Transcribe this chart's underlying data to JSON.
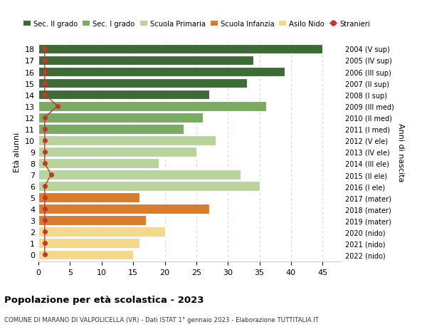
{
  "ages": [
    18,
    17,
    16,
    15,
    14,
    13,
    12,
    11,
    10,
    9,
    8,
    7,
    6,
    5,
    4,
    3,
    2,
    1,
    0
  ],
  "right_labels": [
    "2004 (V sup)",
    "2005 (IV sup)",
    "2006 (III sup)",
    "2007 (II sup)",
    "2008 (I sup)",
    "2009 (III med)",
    "2010 (II med)",
    "2011 (I med)",
    "2012 (V ele)",
    "2013 (IV ele)",
    "2014 (III ele)",
    "2015 (II ele)",
    "2016 (I ele)",
    "2017 (mater)",
    "2018 (mater)",
    "2019 (mater)",
    "2020 (nido)",
    "2021 (nido)",
    "2022 (nido)"
  ],
  "bar_values": [
    45,
    34,
    39,
    33,
    27,
    36,
    26,
    23,
    28,
    25,
    19,
    32,
    35,
    16,
    27,
    17,
    20,
    16,
    15
  ],
  "bar_colors": [
    "#3d6b35",
    "#3d6b35",
    "#3d6b35",
    "#3d6b35",
    "#3d6b35",
    "#7aab60",
    "#7aab60",
    "#7aab60",
    "#b8d49a",
    "#b8d49a",
    "#b8d49a",
    "#b8d49a",
    "#b8d49a",
    "#d97c2b",
    "#d97c2b",
    "#d97c2b",
    "#f5d98b",
    "#f5d98b",
    "#f5d98b"
  ],
  "stranieri_values": [
    1,
    1,
    1,
    1,
    1,
    3,
    1,
    1,
    1,
    1,
    1,
    2,
    1,
    1,
    1,
    1,
    1,
    1,
    1
  ],
  "stranieri_color": "#c0392b",
  "legend_items": [
    {
      "label": "Sec. II grado",
      "color": "#3d6b35"
    },
    {
      "label": "Sec. I grado",
      "color": "#7aab60"
    },
    {
      "label": "Scuola Primaria",
      "color": "#b8d49a"
    },
    {
      "label": "Scuola Infanzia",
      "color": "#d97c2b"
    },
    {
      "label": "Asilo Nido",
      "color": "#f5d98b"
    },
    {
      "label": "Stranieri",
      "color": "#c0392b"
    }
  ],
  "ylabel_left": "Età alunni",
  "ylabel_right": "Anni di nascita",
  "xlim": [
    0,
    48
  ],
  "xticks": [
    0,
    5,
    10,
    15,
    20,
    25,
    30,
    35,
    40,
    45
  ],
  "title": "Popolazione per età scolastica - 2023",
  "subtitle": "COMUNE DI MARANO DI VALPOLICELLA (VR) - Dati ISTAT 1° gennaio 2023 - Elaborazione TUTTITALIA.IT",
  "background_color": "#ffffff",
  "grid_color": "#cccccc"
}
